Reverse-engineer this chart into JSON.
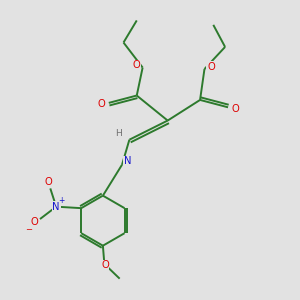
{
  "bg_color": "#e2e2e2",
  "bond_color": "#2d7a2d",
  "atom_colors": {
    "O": "#dd0000",
    "N": "#1414cc",
    "H": "#707070",
    "default": "#2d7a2d"
  },
  "lw": 1.4,
  "fs": 7.2
}
